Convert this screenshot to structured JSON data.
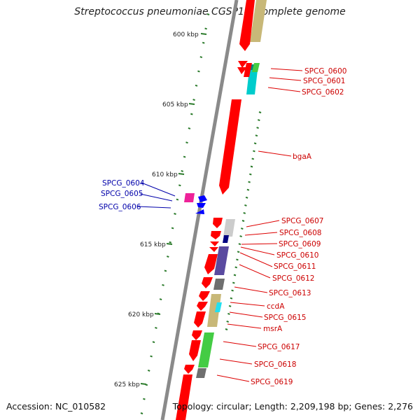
{
  "title": "Streptococcus pneumoniae CGSP14, complete genome",
  "accession": "Accession: NC_010582",
  "topology": "Topology: circular; Length: 2,209,198 bp; Genes: 2,276",
  "colors": {
    "backbone": "#8a8a8a",
    "tick": "#2a7a2a",
    "forward_gene": "#ff0000",
    "reverse_gene": "#0000ff",
    "right_label": "#cc0000",
    "left_label": "#0000aa"
  },
  "ruler": {
    "kbp_labels": [
      "600 kbp",
      "605 kbp",
      "610 kbp",
      "615 kbp",
      "620 kbp",
      "625 kbp"
    ]
  },
  "genes": {
    "right": [
      {
        "label": "SPCG_0600"
      },
      {
        "label": "SPCG_0601"
      },
      {
        "label": "SPCG_0602"
      },
      {
        "label": "bgaA"
      },
      {
        "label": "SPCG_0607"
      },
      {
        "label": "SPCG_0608"
      },
      {
        "label": "SPCG_0609"
      },
      {
        "label": "SPCG_0610"
      },
      {
        "label": "SPCG_0611"
      },
      {
        "label": "SPCG_0612"
      },
      {
        "label": "SPCG_0613"
      },
      {
        "label": "ccdA"
      },
      {
        "label": "SPCG_0615"
      },
      {
        "label": "msrA"
      },
      {
        "label": "SPCG_0617"
      },
      {
        "label": "SPCG_0618"
      },
      {
        "label": "SPCG_0619"
      }
    ],
    "left": [
      {
        "label": "SPCG_0604"
      },
      {
        "label": "SPCG_0605"
      },
      {
        "label": "SPCG_0606"
      }
    ]
  }
}
